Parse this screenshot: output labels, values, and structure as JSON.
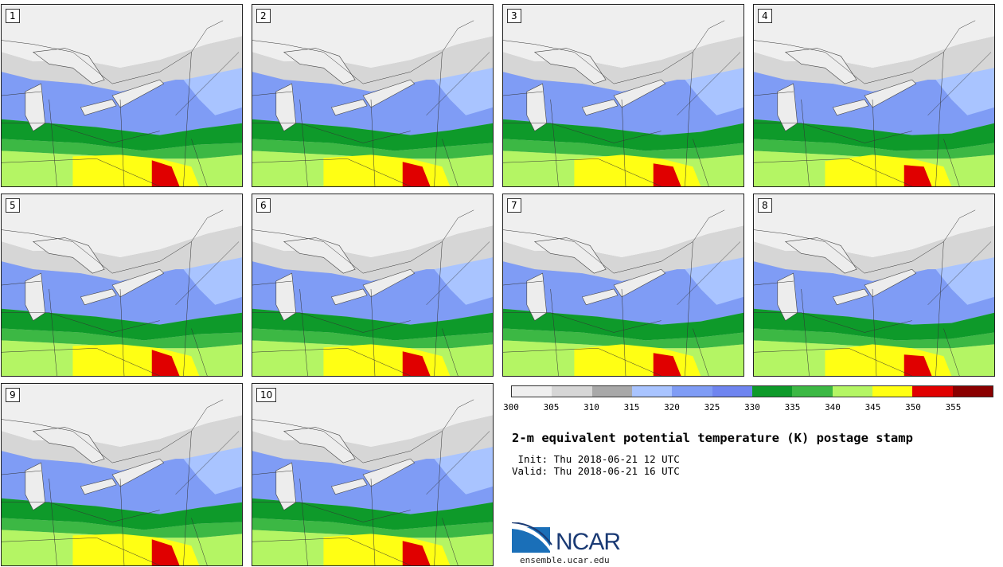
{
  "panels": [
    {
      "label": "1"
    },
    {
      "label": "2"
    },
    {
      "label": "3"
    },
    {
      "label": "4"
    },
    {
      "label": "5"
    },
    {
      "label": "6"
    },
    {
      "label": "7"
    },
    {
      "label": "8"
    },
    {
      "label": "9"
    },
    {
      "label": "10"
    }
  ],
  "colorbar": {
    "colors": [
      "#efefef",
      "#d6d6d6",
      "#a8a8a8",
      "#a9c4ff",
      "#7f9cf5",
      "#6f85f0",
      "#0e9a2a",
      "#3cb844",
      "#b4f564",
      "#ffff14",
      "#e00000",
      "#8a0000"
    ],
    "ticks": [
      "300",
      "305",
      "310",
      "315",
      "320",
      "325",
      "330",
      "335",
      "340",
      "345",
      "350",
      "355"
    ]
  },
  "title": "2-m equivalent potential temperature (K) postage stamp",
  "init_line": " Init: Thu 2018-06-21 12 UTC",
  "valid_line": "Valid: Thu 2018-06-21 16 UTC",
  "logo": {
    "name": "NCAR",
    "url": "ensemble.ucar.edu",
    "brand_color": "#1a3a74"
  }
}
